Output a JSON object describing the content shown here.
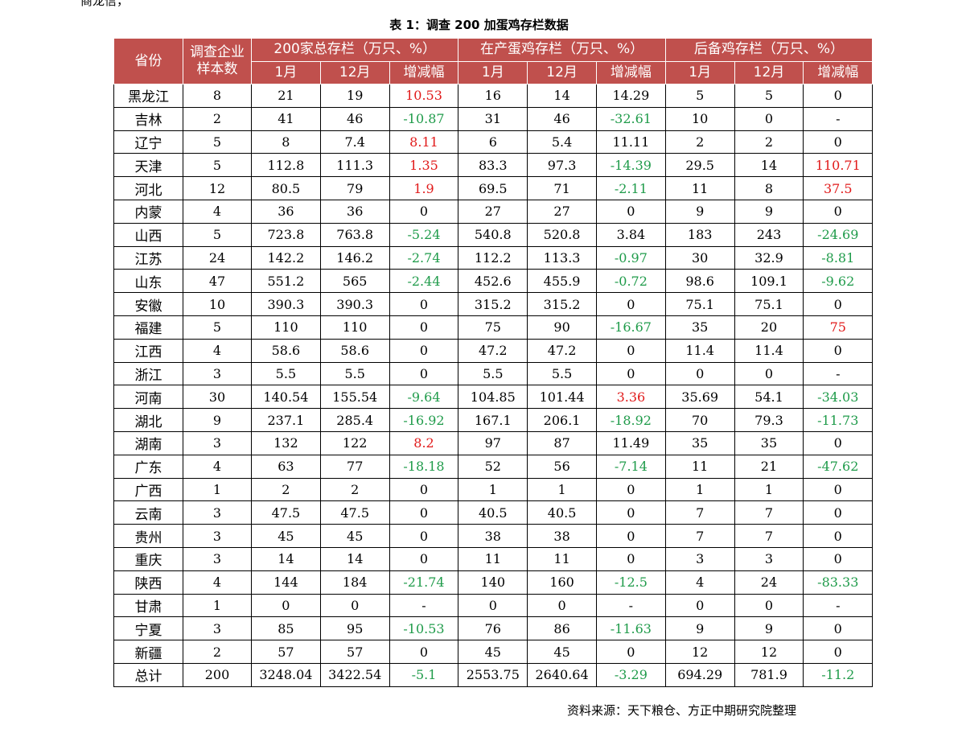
{
  "top_fragment": "商龙信，",
  "caption": "表 1：调查 200 加蛋鸡存栏数据",
  "header": {
    "province": "省份",
    "sample": "调查企业样本数",
    "group_total": "200家总存栏（万只、%）",
    "group_laying": "在产蛋鸡存栏（万只、%）",
    "group_reserve": "后备鸡存栏（万只、%）",
    "jan": "1月",
    "dec": "12月",
    "change": "增减幅"
  },
  "rows": [
    {
      "p": "黑龙江",
      "n": "8",
      "t1": "21",
      "t2": "19",
      "tc": "10.53",
      "l1": "16",
      "l2": "14",
      "lc": "14.29",
      "r1": "5",
      "r2": "5",
      "rc": "0"
    },
    {
      "p": "吉林",
      "n": "2",
      "t1": "41",
      "t2": "46",
      "tc": "-10.87",
      "l1": "31",
      "l2": "46",
      "lc": "-32.61",
      "r1": "10",
      "r2": "0",
      "rc": "-"
    },
    {
      "p": "辽宁",
      "n": "5",
      "t1": "8",
      "t2": "7.4",
      "tc": "8.11",
      "l1": "6",
      "l2": "5.4",
      "lc": "11.11",
      "r1": "2",
      "r2": "2",
      "rc": "0"
    },
    {
      "p": "天津",
      "n": "5",
      "t1": "112.8",
      "t2": "111.3",
      "tc": "1.35",
      "l1": "83.3",
      "l2": "97.3",
      "lc": "-14.39",
      "r1": "29.5",
      "r2": "14",
      "rc": "110.71"
    },
    {
      "p": "河北",
      "n": "12",
      "t1": "80.5",
      "t2": "79",
      "tc": "1.9",
      "l1": "69.5",
      "l2": "71",
      "lc": "-2.11",
      "r1": "11",
      "r2": "8",
      "rc": "37.5"
    },
    {
      "p": "内蒙",
      "n": "4",
      "t1": "36",
      "t2": "36",
      "tc": "0",
      "l1": "27",
      "l2": "27",
      "lc": "0",
      "r1": "9",
      "r2": "9",
      "rc": "0"
    },
    {
      "p": "山西",
      "n": "5",
      "t1": "723.8",
      "t2": "763.8",
      "tc": "-5.24",
      "l1": "540.8",
      "l2": "520.8",
      "lc": "3.84",
      "r1": "183",
      "r2": "243",
      "rc": "-24.69"
    },
    {
      "p": "江苏",
      "n": "24",
      "t1": "142.2",
      "t2": "146.2",
      "tc": "-2.74",
      "l1": "112.2",
      "l2": "113.3",
      "lc": "-0.97",
      "r1": "30",
      "r2": "32.9",
      "rc": "-8.81"
    },
    {
      "p": "山东",
      "n": "47",
      "t1": "551.2",
      "t2": "565",
      "tc": "-2.44",
      "l1": "452.6",
      "l2": "455.9",
      "lc": "-0.72",
      "r1": "98.6",
      "r2": "109.1",
      "rc": "-9.62"
    },
    {
      "p": "安徽",
      "n": "10",
      "t1": "390.3",
      "t2": "390.3",
      "tc": "0",
      "l1": "315.2",
      "l2": "315.2",
      "lc": "0",
      "r1": "75.1",
      "r2": "75.1",
      "rc": "0"
    },
    {
      "p": "福建",
      "n": "5",
      "t1": "110",
      "t2": "110",
      "tc": "0",
      "l1": "75",
      "l2": "90",
      "lc": "-16.67",
      "r1": "35",
      "r2": "20",
      "rc": "75"
    },
    {
      "p": "江西",
      "n": "4",
      "t1": "58.6",
      "t2": "58.6",
      "tc": "0",
      "l1": "47.2",
      "l2": "47.2",
      "lc": "0",
      "r1": "11.4",
      "r2": "11.4",
      "rc": "0"
    },
    {
      "p": "浙江",
      "n": "3",
      "t1": "5.5",
      "t2": "5.5",
      "tc": "0",
      "l1": "5.5",
      "l2": "5.5",
      "lc": "0",
      "r1": "0",
      "r2": "0",
      "rc": "-"
    },
    {
      "p": "河南",
      "n": "30",
      "t1": "140.54",
      "t2": "155.54",
      "tc": "-9.64",
      "l1": "104.85",
      "l2": "101.44",
      "lc": "3.36",
      "r1": "35.69",
      "r2": "54.1",
      "rc": "-34.03"
    },
    {
      "p": "湖北",
      "n": "9",
      "t1": "237.1",
      "t2": "285.4",
      "tc": "-16.92",
      "l1": "167.1",
      "l2": "206.1",
      "lc": "-18.92",
      "r1": "70",
      "r2": "79.3",
      "rc": "-11.73"
    },
    {
      "p": "湖南",
      "n": "3",
      "t1": "132",
      "t2": "122",
      "tc": "8.2",
      "l1": "97",
      "l2": "87",
      "lc": "11.49",
      "r1": "35",
      "r2": "35",
      "rc": "0"
    },
    {
      "p": "广东",
      "n": "4",
      "t1": "63",
      "t2": "77",
      "tc": "-18.18",
      "l1": "52",
      "l2": "56",
      "lc": "-7.14",
      "r1": "11",
      "r2": "21",
      "rc": "-47.62"
    },
    {
      "p": "广西",
      "n": "1",
      "t1": "2",
      "t2": "2",
      "tc": "0",
      "l1": "1",
      "l2": "1",
      "lc": "0",
      "r1": "1",
      "r2": "1",
      "rc": "0"
    },
    {
      "p": "云南",
      "n": "3",
      "t1": "47.5",
      "t2": "47.5",
      "tc": "0",
      "l1": "40.5",
      "l2": "40.5",
      "lc": "0",
      "r1": "7",
      "r2": "7",
      "rc": "0"
    },
    {
      "p": "贵州",
      "n": "3",
      "t1": "45",
      "t2": "45",
      "tc": "0",
      "l1": "38",
      "l2": "38",
      "lc": "0",
      "r1": "7",
      "r2": "7",
      "rc": "0"
    },
    {
      "p": "重庆",
      "n": "3",
      "t1": "14",
      "t2": "14",
      "tc": "0",
      "l1": "11",
      "l2": "11",
      "lc": "0",
      "r1": "3",
      "r2": "3",
      "rc": "0"
    },
    {
      "p": "陕西",
      "n": "4",
      "t1": "144",
      "t2": "184",
      "tc": "-21.74",
      "l1": "140",
      "l2": "160",
      "lc": "-12.5",
      "r1": "4",
      "r2": "24",
      "rc": "-83.33"
    },
    {
      "p": "甘肃",
      "n": "1",
      "t1": "0",
      "t2": "0",
      "tc": "-",
      "l1": "0",
      "l2": "0",
      "lc": "-",
      "r1": "0",
      "r2": "0",
      "rc": "-"
    },
    {
      "p": "宁夏",
      "n": "3",
      "t1": "85",
      "t2": "95",
      "tc": "-10.53",
      "l1": "76",
      "l2": "86",
      "lc": "-11.63",
      "r1": "9",
      "r2": "9",
      "rc": "0"
    },
    {
      "p": "新疆",
      "n": "2",
      "t1": "57",
      "t2": "57",
      "tc": "0",
      "l1": "45",
      "l2": "45",
      "lc": "0",
      "r1": "12",
      "r2": "12",
      "rc": "0"
    },
    {
      "p": "总计",
      "n": "200",
      "t1": "3248.04",
      "t2": "3422.54",
      "tc": "-5.1",
      "l1": "2553.75",
      "l2": "2640.64",
      "lc": "-3.29",
      "r1": "694.29",
      "r2": "781.9",
      "rc": "-11.2"
    }
  ],
  "colors": {
    "header_bg": "#c0504d",
    "increase": "#e11a1a",
    "decrease": "#1f9b4a"
  },
  "source": "资料来源：天下粮仓、方正中期研究院整理"
}
